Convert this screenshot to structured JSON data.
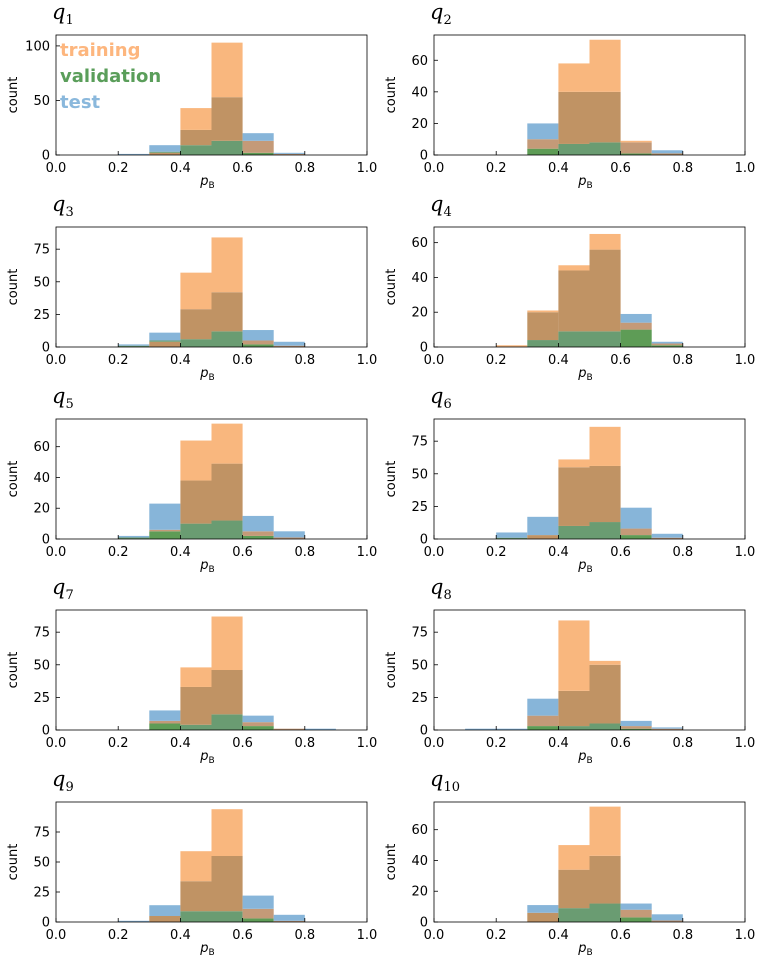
{
  "legend": [
    {
      "label": "training",
      "color": "#fdb67e"
    },
    {
      "label": "validation",
      "color": "#5a9e5a"
    },
    {
      "label": "test",
      "color": "#8ab8dc"
    }
  ],
  "colors": {
    "training": "#f9b77e",
    "validation": "#5e9c56",
    "test": "#87b5d9",
    "training_over_validation": "#c09364",
    "training_over_test": "#c49a78",
    "test_over_validation": "#6a9c72"
  },
  "xlabel": "p",
  "xlabel_sub": "B",
  "ylabel": "count",
  "xtick_labels": [
    "0.0",
    "0.2",
    "0.4",
    "0.6",
    "0.8",
    "1.0"
  ],
  "chart_data": [
    {
      "type": "bar",
      "title": "q",
      "title_sub": "1",
      "ylim": [
        0,
        110
      ],
      "yticks": [
        0,
        50,
        100
      ],
      "bins": [
        0.2,
        0.3,
        0.4,
        0.5,
        0.6,
        0.7
      ],
      "series": [
        {
          "name": "training",
          "values": [
            0,
            2,
            43,
            103,
            13,
            1
          ]
        },
        {
          "name": "validation",
          "values": [
            0,
            3,
            23,
            53,
            2,
            0
          ]
        },
        {
          "name": "test",
          "values": [
            1,
            9,
            9,
            13,
            20,
            2
          ]
        }
      ]
    },
    {
      "type": "bar",
      "title": "q",
      "title_sub": "2",
      "ylim": [
        0,
        76
      ],
      "yticks": [
        0,
        20,
        40,
        60
      ],
      "bins": [
        0.3,
        0.4,
        0.5,
        0.6,
        0.7
      ],
      "series": [
        {
          "name": "training",
          "values": [
            10,
            58,
            73,
            9,
            1
          ]
        },
        {
          "name": "validation",
          "values": [
            4,
            40,
            40,
            1,
            1
          ]
        },
        {
          "name": "test",
          "values": [
            20,
            7,
            8,
            8,
            3
          ]
        }
      ]
    },
    {
      "type": "bar",
      "title": "q",
      "title_sub": "3",
      "ylim": [
        0,
        92
      ],
      "yticks": [
        0,
        25,
        50,
        75
      ],
      "bins": [
        0.2,
        0.3,
        0.4,
        0.5,
        0.6,
        0.7
      ],
      "series": [
        {
          "name": "training",
          "values": [
            0,
            4,
            57,
            84,
            5,
            1
          ]
        },
        {
          "name": "validation",
          "values": [
            1,
            5,
            29,
            42,
            2,
            0
          ]
        },
        {
          "name": "test",
          "values": [
            2,
            11,
            6,
            12,
            13,
            4
          ]
        }
      ]
    },
    {
      "type": "bar",
      "title": "q",
      "title_sub": "4",
      "ylim": [
        0,
        69
      ],
      "yticks": [
        0,
        20,
        40,
        60
      ],
      "bins": [
        0.2,
        0.3,
        0.4,
        0.5,
        0.6,
        0.7
      ],
      "series": [
        {
          "name": "training",
          "values": [
            1,
            21,
            47,
            65,
            14,
            2
          ]
        },
        {
          "name": "validation",
          "values": [
            0,
            20,
            44,
            56,
            10,
            1
          ]
        },
        {
          "name": "test",
          "values": [
            0,
            4,
            9,
            9,
            19,
            3
          ]
        }
      ]
    },
    {
      "type": "bar",
      "title": "q",
      "title_sub": "5",
      "ylim": [
        0,
        78
      ],
      "yticks": [
        0,
        20,
        40,
        60
      ],
      "bins": [
        0.2,
        0.3,
        0.4,
        0.5,
        0.6,
        0.7
      ],
      "series": [
        {
          "name": "training",
          "values": [
            0,
            6,
            64,
            75,
            5,
            1
          ]
        },
        {
          "name": "validation",
          "values": [
            1,
            5,
            38,
            49,
            2,
            0
          ]
        },
        {
          "name": "test",
          "values": [
            2,
            23,
            10,
            12,
            15,
            5
          ]
        }
      ]
    },
    {
      "type": "bar",
      "title": "q",
      "title_sub": "6",
      "ylim": [
        0,
        92
      ],
      "yticks": [
        0,
        25,
        50,
        75
      ],
      "bins": [
        0.2,
        0.3,
        0.4,
        0.5,
        0.6,
        0.7
      ],
      "series": [
        {
          "name": "training",
          "values": [
            0,
            3,
            61,
            86,
            8,
            1
          ]
        },
        {
          "name": "validation",
          "values": [
            1,
            3,
            55,
            56,
            3,
            0
          ]
        },
        {
          "name": "test",
          "values": [
            5,
            17,
            10,
            13,
            24,
            4
          ]
        }
      ]
    },
    {
      "type": "bar",
      "title": "q",
      "title_sub": "7",
      "ylim": [
        0,
        92
      ],
      "yticks": [
        0,
        25,
        50,
        75
      ],
      "bins": [
        0.3,
        0.4,
        0.5,
        0.6,
        0.7,
        0.8
      ],
      "series": [
        {
          "name": "training",
          "values": [
            7,
            48,
            87,
            6,
            1,
            0
          ]
        },
        {
          "name": "validation",
          "values": [
            5,
            33,
            46,
            3,
            0,
            0
          ]
        },
        {
          "name": "test",
          "values": [
            15,
            4,
            12,
            11,
            1,
            1
          ]
        }
      ]
    },
    {
      "type": "bar",
      "title": "q",
      "title_sub": "8",
      "ylim": [
        0,
        92
      ],
      "yticks": [
        0,
        25,
        50,
        75
      ],
      "bins": [
        0.1,
        0.2,
        0.3,
        0.4,
        0.5,
        0.6,
        0.7
      ],
      "series": [
        {
          "name": "training",
          "values": [
            0,
            0,
            11,
            84,
            53,
            3,
            1
          ]
        },
        {
          "name": "validation",
          "values": [
            0,
            0,
            3,
            30,
            50,
            1,
            0
          ]
        },
        {
          "name": "test",
          "values": [
            1,
            1,
            24,
            3,
            5,
            7,
            2
          ]
        }
      ]
    },
    {
      "type": "bar",
      "title": "q",
      "title_sub": "9",
      "ylim": [
        0,
        100
      ],
      "yticks": [
        0,
        25,
        50,
        75
      ],
      "bins": [
        0.2,
        0.3,
        0.4,
        0.5,
        0.6,
        0.7
      ],
      "series": [
        {
          "name": "training",
          "values": [
            0,
            5,
            59,
            94,
            11,
            1
          ]
        },
        {
          "name": "validation",
          "values": [
            0,
            5,
            34,
            55,
            3,
            0
          ]
        },
        {
          "name": "test",
          "values": [
            1,
            14,
            9,
            9,
            22,
            6
          ]
        }
      ]
    },
    {
      "type": "bar",
      "title": "q",
      "title_sub": "10",
      "ylim": [
        0,
        78
      ],
      "yticks": [
        0,
        20,
        40,
        60
      ],
      "bins": [
        0.3,
        0.4,
        0.5,
        0.6,
        0.7
      ],
      "series": [
        {
          "name": "training",
          "values": [
            6,
            50,
            75,
            8,
            1
          ]
        },
        {
          "name": "validation",
          "values": [
            6,
            34,
            43,
            3,
            0
          ]
        },
        {
          "name": "test",
          "values": [
            11,
            9,
            12,
            12,
            5
          ]
        }
      ]
    }
  ]
}
